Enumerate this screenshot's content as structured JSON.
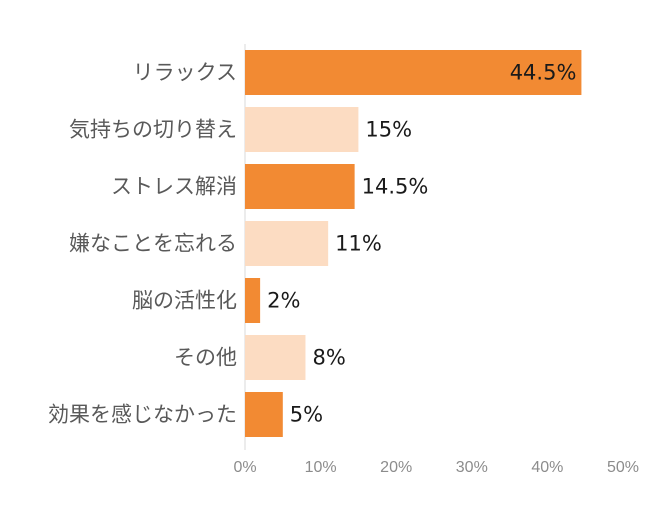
{
  "chart_data": {
    "type": "bar",
    "orientation": "horizontal",
    "categories": [
      "リラックス",
      "気持ちの切り替え",
      "ストレス解消",
      "嫌なことを忘れる",
      "脳の活性化",
      "その他",
      "効果を感じなかった"
    ],
    "values": [
      44.5,
      15,
      14.5,
      11,
      2,
      8,
      5
    ],
    "data_labels": [
      "44.5%",
      "15%",
      "14.5%",
      "11%",
      "2%",
      "8%",
      "5%"
    ],
    "bar_colors": [
      "#f28a33",
      "#fcdcc2",
      "#f28a33",
      "#fcdcc2",
      "#f28a33",
      "#fcdcc2",
      "#f28a33"
    ],
    "label_inside": [
      true,
      false,
      false,
      false,
      false,
      false,
      false
    ],
    "x_ticks": [
      0,
      10,
      20,
      30,
      40,
      50
    ],
    "x_tick_labels": [
      "0%",
      "10%",
      "20%",
      "30%",
      "40%",
      "50%"
    ],
    "xlim": [
      0,
      50
    ],
    "grid": false,
    "legend": "none",
    "title": "",
    "xlabel": "",
    "ylabel": ""
  }
}
